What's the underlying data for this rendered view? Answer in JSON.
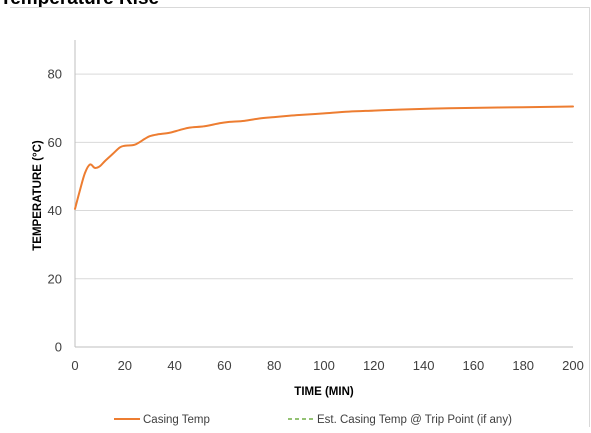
{
  "page": {
    "title": "Temperature Rise"
  },
  "colors": {
    "casing_temp": "#ED7D31",
    "est_casing_temp": "#70AD47",
    "gridline": "#d9d9d9",
    "axis": "#bfbfbf"
  },
  "chart_data": {
    "type": "line",
    "title": "",
    "xlabel": "TIME (MIN)",
    "ylabel": "TEMPERATURE (°C)",
    "xlim": [
      0,
      200
    ],
    "ylim": [
      0,
      90
    ],
    "xticks": [
      0,
      20,
      40,
      60,
      80,
      100,
      120,
      140,
      160,
      180,
      200
    ],
    "yticks": [
      0,
      20,
      40,
      60,
      80
    ],
    "grid": "horizontal",
    "legend_position": "bottom",
    "series": [
      {
        "name": "Casing Temp",
        "style": "solid",
        "x": [
          0,
          2,
          4,
          6,
          8,
          10,
          12,
          15,
          18,
          20,
          24,
          28,
          30,
          33,
          38,
          42,
          46,
          52,
          58,
          62,
          68,
          74,
          80,
          86,
          90,
          100,
          110,
          120,
          130,
          140,
          150,
          160,
          170,
          180,
          190,
          200
        ],
        "y": [
          40.5,
          46,
          51,
          53.5,
          52.5,
          53,
          54.5,
          56.5,
          58.5,
          59,
          59.3,
          61,
          61.8,
          62.3,
          62.8,
          63.6,
          64.3,
          64.7,
          65.6,
          66,
          66.3,
          67,
          67.4,
          67.8,
          68,
          68.5,
          69,
          69.3,
          69.6,
          69.8,
          70,
          70.1,
          70.2,
          70.3,
          70.4,
          70.5
        ]
      },
      {
        "name": "Est. Casing Temp @ Trip Point (if any)",
        "style": "dashed",
        "x": [],
        "y": []
      }
    ]
  }
}
